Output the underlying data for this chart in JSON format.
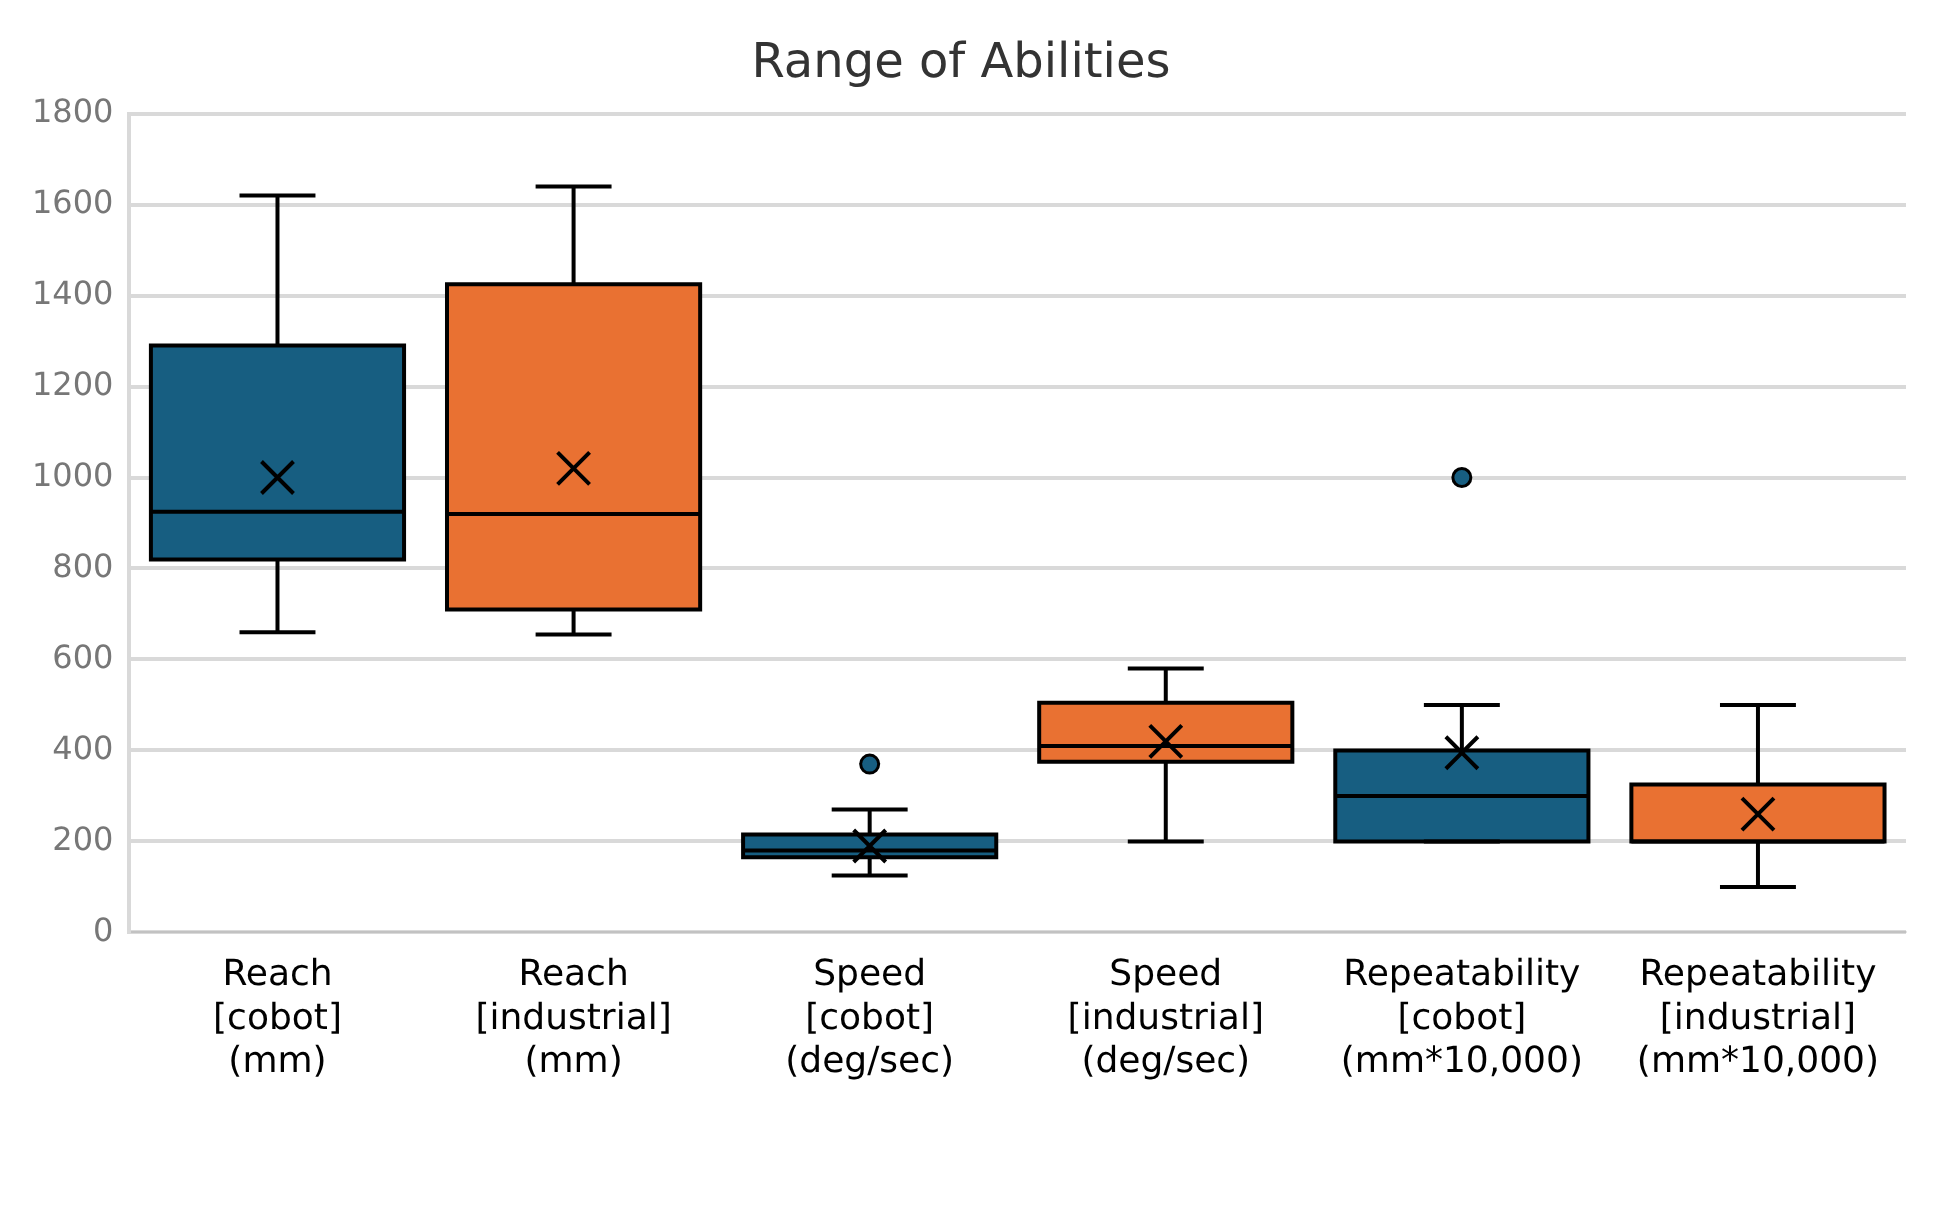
{
  "chart_data": {
    "type": "box",
    "title": "Range of Abilities",
    "categories": [
      "Reach [cobot] (mm)",
      "Reach [industrial] (mm)",
      "Speed [cobot] (deg/sec)",
      "Speed [industrial] (deg/sec)",
      "Repeatability [cobot] (mm*10,000)",
      "Repeatability [industrial] (mm*10,000)"
    ],
    "colors": [
      "#175e81",
      "#e97132",
      "#175e81",
      "#e97132",
      "#175e81",
      "#e97132"
    ],
    "boxes": [
      {
        "low": 660,
        "q1": 820,
        "median": 925,
        "q3": 1290,
        "high": 1620,
        "mean": 1000
      },
      {
        "low": 655,
        "q1": 710,
        "median": 920,
        "q3": 1425,
        "high": 1640,
        "mean": 1020
      },
      {
        "low": 125,
        "q1": 165,
        "median": 180,
        "q3": 215,
        "high": 270,
        "mean": 190,
        "outliers": [
          370
        ]
      },
      {
        "low": 200,
        "q1": 375,
        "median": 410,
        "q3": 505,
        "high": 580,
        "mean": 420
      },
      {
        "low": 200,
        "q1": 200,
        "median": 300,
        "q3": 400,
        "high": 500,
        "mean": 395,
        "outliers": [
          1000
        ]
      },
      {
        "low": 100,
        "q1": 200,
        "median": 200,
        "q3": 325,
        "high": 500,
        "mean": 260
      }
    ],
    "ylim": [
      0,
      1800
    ],
    "yticks": [
      0,
      200,
      400,
      600,
      800,
      1000,
      1200,
      1400,
      1600,
      1800
    ],
    "grid": "y",
    "legend": false,
    "marker": "cross"
  }
}
